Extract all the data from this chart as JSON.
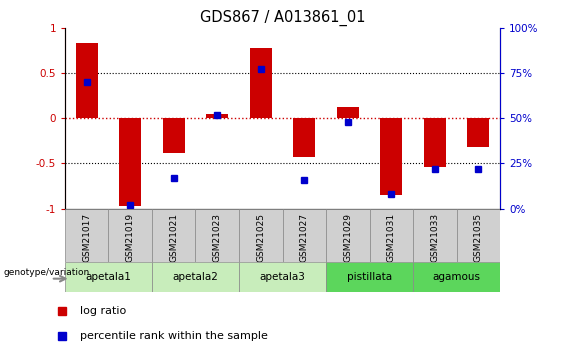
{
  "title": "GDS867 / A013861_01",
  "samples": [
    "GSM21017",
    "GSM21019",
    "GSM21021",
    "GSM21023",
    "GSM21025",
    "GSM21027",
    "GSM21029",
    "GSM21031",
    "GSM21033",
    "GSM21035"
  ],
  "log_ratio": [
    0.83,
    -0.97,
    -0.38,
    0.05,
    0.78,
    -0.43,
    0.12,
    -0.85,
    -0.54,
    -0.32
  ],
  "percentile_rank": [
    70,
    2,
    17,
    52,
    77,
    16,
    48,
    8,
    22,
    22
  ],
  "groups": [
    {
      "label": "apetala1",
      "start": 0,
      "end": 1,
      "color": "#c8edbb"
    },
    {
      "label": "apetala2",
      "start": 2,
      "end": 3,
      "color": "#c8edbb"
    },
    {
      "label": "apetala3",
      "start": 4,
      "end": 5,
      "color": "#c8edbb"
    },
    {
      "label": "pistillata",
      "start": 6,
      "end": 7,
      "color": "#5cd65c"
    },
    {
      "label": "agamous",
      "start": 8,
      "end": 9,
      "color": "#5cd65c"
    }
  ],
  "bar_color": "#cc0000",
  "dot_color": "#0000cc",
  "ylim": [
    -1,
    1
  ],
  "y2lim": [
    0,
    100
  ],
  "yticks": [
    -1,
    -0.5,
    0,
    0.5,
    1
  ],
  "ytick_labels": [
    "-1",
    "-0.5",
    "0",
    "0.5",
    "1"
  ],
  "y2ticks": [
    0,
    25,
    50,
    75,
    100
  ],
  "y2ticklabels": [
    "0%",
    "25%",
    "50%",
    "75%",
    "100%"
  ],
  "hline_color": "#cc0000",
  "dotted_line_color": "black",
  "bg_color": "white",
  "bar_width": 0.5,
  "genotype_label": "genotype/variation",
  "legend_items": [
    {
      "label": "log ratio",
      "color": "#cc0000"
    },
    {
      "label": "percentile rank within the sample",
      "color": "#0000cc"
    }
  ],
  "sample_header_color": "#d0d0d0",
  "n_samples": 10
}
